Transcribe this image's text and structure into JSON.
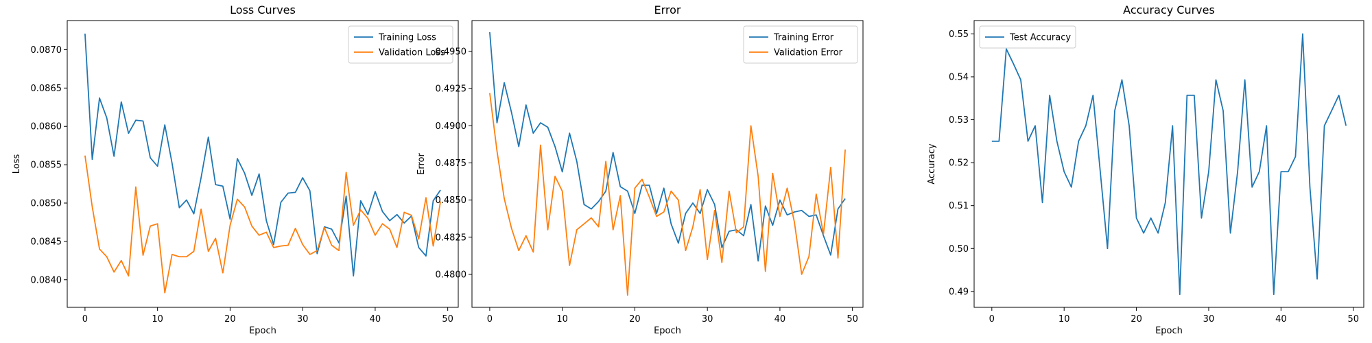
{
  "chart_data": [
    {
      "type": "line",
      "title": "Loss Curves",
      "xlabel": "Epoch",
      "ylabel": "Loss",
      "xlim": [
        -2.45,
        51.45
      ],
      "ylim": [
        0.08364,
        0.08738
      ],
      "xticks": [
        0,
        10,
        20,
        30,
        40,
        50
      ],
      "yticks": [
        0.084,
        0.0845,
        0.085,
        0.0855,
        0.086,
        0.0865,
        0.087
      ],
      "ytick_labels": [
        "0.0840",
        "0.0845",
        "0.0850",
        "0.0855",
        "0.0860",
        "0.0865",
        "0.0870"
      ],
      "legend_position": "upper right",
      "grid": false,
      "series": [
        {
          "name": "Training Loss",
          "color": "#1f77b4",
          "x": [
            0,
            1,
            2,
            3,
            4,
            5,
            6,
            7,
            8,
            9,
            10,
            11,
            12,
            13,
            14,
            15,
            16,
            17,
            18,
            19,
            20,
            21,
            22,
            23,
            24,
            25,
            26,
            27,
            28,
            29,
            30,
            31,
            32,
            33,
            34,
            35,
            36,
            37,
            38,
            39,
            40,
            41,
            42,
            43,
            44,
            45,
            46,
            47,
            48,
            49
          ],
          "values": [
            0.08721,
            0.08557,
            0.08637,
            0.08611,
            0.08561,
            0.08632,
            0.08591,
            0.08608,
            0.08607,
            0.08559,
            0.08548,
            0.08602,
            0.08552,
            0.08494,
            0.08504,
            0.08486,
            0.08533,
            0.08586,
            0.08524,
            0.08522,
            0.08479,
            0.08558,
            0.08539,
            0.0851,
            0.08538,
            0.08477,
            0.08446,
            0.08501,
            0.08513,
            0.08514,
            0.08533,
            0.08516,
            0.08434,
            0.08469,
            0.08466,
            0.08448,
            0.08509,
            0.08405,
            0.08503,
            0.08485,
            0.08515,
            0.08489,
            0.08477,
            0.08485,
            0.08474,
            0.08483,
            0.08442,
            0.08431,
            0.08503,
            0.08517
          ]
        },
        {
          "name": "Validation Loss",
          "color": "#ff7f0e",
          "x": [
            0,
            1,
            2,
            3,
            4,
            5,
            6,
            7,
            8,
            9,
            10,
            11,
            12,
            13,
            14,
            15,
            16,
            17,
            18,
            19,
            20,
            21,
            22,
            23,
            24,
            25,
            26,
            27,
            28,
            29,
            30,
            31,
            32,
            33,
            34,
            35,
            36,
            37,
            38,
            39,
            40,
            41,
            42,
            43,
            44,
            45,
            46,
            47,
            48,
            49
          ],
          "values": [
            0.08562,
            0.08495,
            0.0844,
            0.0843,
            0.0841,
            0.08425,
            0.08405,
            0.08521,
            0.08432,
            0.0847,
            0.08473,
            0.08383,
            0.08433,
            0.0843,
            0.0843,
            0.08437,
            0.08492,
            0.08437,
            0.08454,
            0.08409,
            0.08471,
            0.08505,
            0.08495,
            0.0847,
            0.08458,
            0.08462,
            0.08442,
            0.08444,
            0.08445,
            0.08467,
            0.08446,
            0.08433,
            0.08438,
            0.08468,
            0.08445,
            0.08438,
            0.0854,
            0.08471,
            0.08491,
            0.0848,
            0.08458,
            0.08473,
            0.08466,
            0.08442,
            0.08488,
            0.08484,
            0.08453,
            0.08507,
            0.08444,
            0.08502
          ]
        }
      ]
    },
    {
      "type": "line",
      "title": "Error",
      "xlabel": "Epoch",
      "ylabel": "Error",
      "xlim": [
        -2.45,
        51.45
      ],
      "ylim": [
        0.47778,
        0.49708
      ],
      "xticks": [
        0,
        10,
        20,
        30,
        40,
        50
      ],
      "yticks": [
        0.48,
        0.4825,
        0.485,
        0.4875,
        0.49,
        0.4925,
        0.495
      ],
      "ytick_labels": [
        "0.4800",
        "0.4825",
        "0.4850",
        "0.4875",
        "0.4900",
        "0.4925",
        "0.4950"
      ],
      "legend_position": "upper right",
      "grid": false,
      "series": [
        {
          "name": "Training Error",
          "color": "#1f77b4",
          "x": [
            0,
            1,
            2,
            3,
            4,
            5,
            6,
            7,
            8,
            9,
            10,
            11,
            12,
            13,
            14,
            15,
            16,
            17,
            18,
            19,
            20,
            21,
            22,
            23,
            24,
            25,
            26,
            27,
            28,
            29,
            30,
            31,
            32,
            33,
            34,
            35,
            36,
            37,
            38,
            39,
            40,
            41,
            42,
            43,
            44,
            45,
            46,
            47,
            48,
            49
          ],
          "values": [
            0.4963,
            0.4902,
            0.4929,
            0.4909,
            0.4886,
            0.4914,
            0.4895,
            0.4902,
            0.4899,
            0.4886,
            0.4869,
            0.4895,
            0.4876,
            0.4847,
            0.4844,
            0.4849,
            0.4856,
            0.4882,
            0.4859,
            0.4856,
            0.4841,
            0.486,
            0.486,
            0.4841,
            0.4858,
            0.4834,
            0.4821,
            0.4841,
            0.4848,
            0.4841,
            0.4857,
            0.4847,
            0.4818,
            0.4829,
            0.483,
            0.4826,
            0.4847,
            0.4809,
            0.4846,
            0.4833,
            0.485,
            0.484,
            0.4842,
            0.4843,
            0.4839,
            0.484,
            0.4826,
            0.4813,
            0.4844,
            0.4851
          ]
        },
        {
          "name": "Validation Error",
          "color": "#ff7f0e",
          "x": [
            0,
            1,
            2,
            3,
            4,
            5,
            6,
            7,
            8,
            9,
            10,
            11,
            12,
            13,
            14,
            15,
            16,
            17,
            18,
            19,
            20,
            21,
            22,
            23,
            24,
            25,
            26,
            27,
            28,
            29,
            30,
            31,
            32,
            33,
            34,
            35,
            36,
            37,
            38,
            39,
            40,
            41,
            42,
            43,
            44,
            45,
            46,
            47,
            48,
            49
          ],
          "values": [
            0.4922,
            0.4883,
            0.4851,
            0.4831,
            0.4816,
            0.4826,
            0.4815,
            0.4887,
            0.483,
            0.4866,
            0.4856,
            0.4806,
            0.483,
            0.4834,
            0.4838,
            0.4832,
            0.4876,
            0.483,
            0.4853,
            0.4786,
            0.4858,
            0.4864,
            0.4852,
            0.4839,
            0.4842,
            0.4856,
            0.485,
            0.4816,
            0.4832,
            0.4857,
            0.481,
            0.4843,
            0.4808,
            0.4856,
            0.4828,
            0.4832,
            0.49,
            0.4866,
            0.4802,
            0.4868,
            0.4839,
            0.4858,
            0.4835,
            0.48,
            0.4812,
            0.4854,
            0.4827,
            0.4872,
            0.4811,
            0.4884
          ]
        }
      ]
    },
    {
      "type": "line",
      "title": "Accuracy Curves",
      "xlabel": "Epoch",
      "ylabel": "Accuracy",
      "xlim": [
        -2.45,
        51.45
      ],
      "ylim": [
        0.4863,
        0.5531
      ],
      "xticks": [
        0,
        10,
        20,
        30,
        40,
        50
      ],
      "yticks": [
        0.49,
        0.5,
        0.51,
        0.52,
        0.53,
        0.54,
        0.55
      ],
      "ytick_labels": [
        "0.49",
        "0.50",
        "0.51",
        "0.52",
        "0.53",
        "0.54",
        "0.55"
      ],
      "legend_position": "upper left",
      "grid": false,
      "series": [
        {
          "name": "Test Accuracy",
          "color": "#1f77b4",
          "x": [
            0,
            1,
            2,
            3,
            4,
            5,
            6,
            7,
            8,
            9,
            10,
            11,
            12,
            13,
            14,
            15,
            16,
            17,
            18,
            19,
            20,
            21,
            22,
            23,
            24,
            25,
            26,
            27,
            28,
            29,
            30,
            31,
            32,
            33,
            34,
            35,
            36,
            37,
            38,
            39,
            40,
            41,
            42,
            43,
            44,
            45,
            46,
            47,
            48,
            49
          ],
          "values": [
            0.525,
            0.525,
            0.5465,
            0.543,
            0.5393,
            0.525,
            0.5286,
            0.5107,
            0.5357,
            0.525,
            0.5179,
            0.5143,
            0.525,
            0.5286,
            0.5357,
            0.5179,
            0.5,
            0.5321,
            0.5393,
            0.5286,
            0.5071,
            0.5036,
            0.5071,
            0.5036,
            0.5107,
            0.5286,
            0.4893,
            0.5357,
            0.5357,
            0.5071,
            0.5179,
            0.5393,
            0.5321,
            0.5036,
            0.5179,
            0.5393,
            0.5143,
            0.5179,
            0.5286,
            0.4893,
            0.5179,
            0.5179,
            0.5214,
            0.55,
            0.5143,
            0.4929,
            0.5286,
            0.5321,
            0.5357,
            0.5286
          ]
        }
      ]
    }
  ]
}
